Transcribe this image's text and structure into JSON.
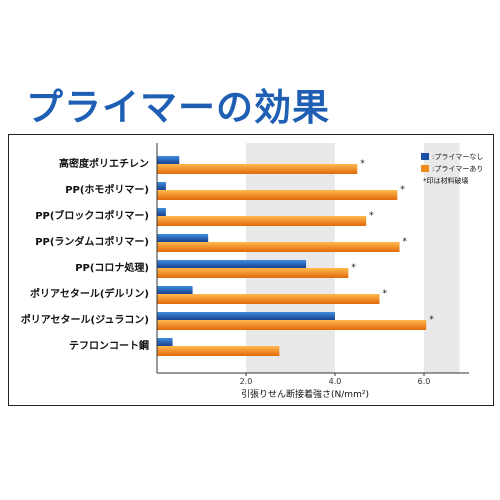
{
  "title": "プライマーの効果",
  "chart_data": {
    "type": "bar",
    "orientation": "horizontal",
    "categories": [
      "高密度ポリエチレン",
      "PP(ホモポリマー)",
      "PP(ブロックコポリマー)",
      "PP(ランダムコポリマー)",
      "PP(コロナ処理)",
      "ポリアセタール(デルリン)",
      "ポリアセタール(ジュラコン)",
      "テフロンコート鋼"
    ],
    "series": [
      {
        "name": ":プライマーなし",
        "color": "#1a4fa8",
        "values": [
          0.5,
          0.2,
          0.2,
          1.15,
          3.35,
          0.8,
          4.0,
          0.35
        ]
      },
      {
        "name": ":プライマーあり",
        "color": "#f08a1c",
        "values": [
          4.5,
          5.4,
          4.7,
          5.45,
          4.3,
          5.0,
          6.05,
          2.75
        ]
      }
    ],
    "material_failure": [
      true,
      true,
      true,
      true,
      true,
      true,
      true,
      false
    ],
    "material_failure_mark": "*",
    "legend_note": "*印は材料破壊",
    "xlabel": "引張りせん断接着強さ(N/mm²)",
    "xticks": [
      2.0,
      4.0,
      6.0
    ],
    "xtick_labels": [
      "2.0",
      "4.0",
      "6.0"
    ],
    "xlim": [
      0,
      6.8
    ],
    "grid": false,
    "shaded_bands": [
      [
        2.0,
        4.0
      ],
      [
        6.0,
        6.8
      ]
    ],
    "legend_position": "top-right"
  }
}
